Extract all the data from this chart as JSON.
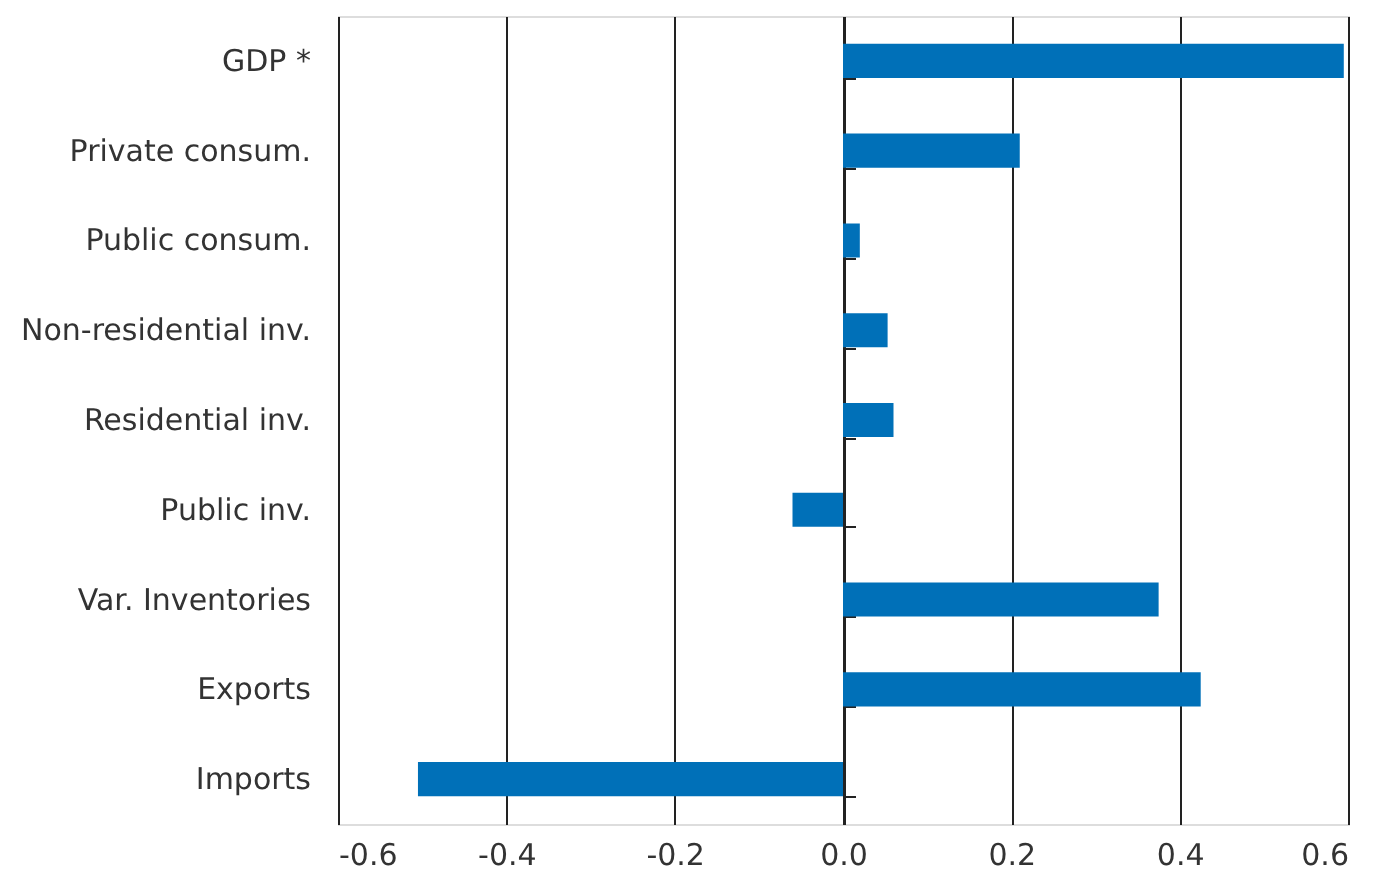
{
  "chart_data": {
    "type": "bar",
    "orientation": "horizontal",
    "categories": [
      "GDP *",
      "Private consum.",
      "Public consum.",
      "Non-residential inv.",
      "Residential inv.",
      "Public inv.",
      "Var. Inventories",
      "Exports",
      "Imports"
    ],
    "values": [
      0.595,
      0.21,
      0.02,
      0.053,
      0.06,
      -0.06,
      0.375,
      0.425,
      -0.505
    ],
    "color": "#0070b8",
    "xlim": [
      -0.6,
      0.6
    ],
    "xticks": [
      -0.6,
      -0.4,
      -0.2,
      {
        "value": 0,
        "label": "0.0"
      },
      0.2,
      0.4,
      0.6
    ],
    "grid": "x"
  }
}
